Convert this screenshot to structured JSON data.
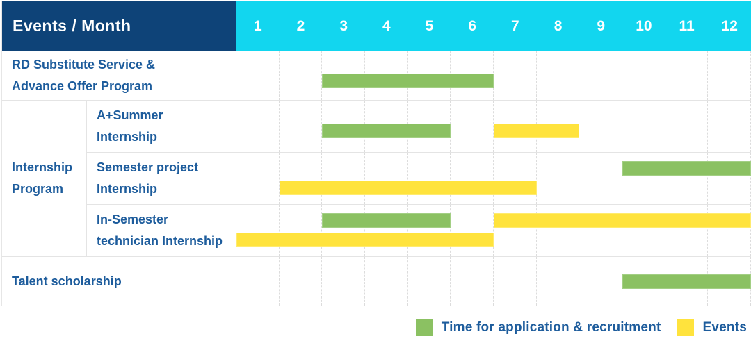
{
  "header": {
    "corner_label": "Events / Month",
    "months": [
      "1",
      "2",
      "3",
      "4",
      "5",
      "6",
      "7",
      "8",
      "9",
      "10",
      "11",
      "12"
    ]
  },
  "legend": {
    "items": [
      {
        "type": "application",
        "label": "Time for application & recruitment"
      },
      {
        "type": "event",
        "label": "Events"
      }
    ]
  },
  "colors": {
    "header_navy": "#0e4378",
    "header_cyan": "#12d6ef",
    "application_green": "#8bc162",
    "event_yellow": "#ffe33d",
    "label_blue": "#1d5c9c",
    "grid_gray": "#e4e4e4"
  },
  "chart_data": {
    "type": "gantt",
    "title": "Events / Month",
    "x_unit": "month",
    "x_range": [
      1,
      12
    ],
    "legend_position": "bottom-right",
    "series_types": {
      "application": "Time for application & recruitment",
      "event": "Events"
    },
    "rows": [
      {
        "group": "",
        "label": "RD Substitute Service &\nAdvance Offer Program",
        "bars": [
          {
            "type": "application",
            "start_month": 3,
            "end_month": 6,
            "track": "mid"
          }
        ]
      },
      {
        "group": "Internship\nProgram",
        "label": "A+Summer\nInternship",
        "bars": [
          {
            "type": "application",
            "start_month": 3,
            "end_month": 5,
            "track": "mid"
          },
          {
            "type": "event",
            "start_month": 7,
            "end_month": 8,
            "track": "mid"
          }
        ]
      },
      {
        "group": "Internship\nProgram",
        "label": "Semester project\nInternship",
        "bars": [
          {
            "type": "application",
            "start_month": 10,
            "end_month": 12,
            "track": "upper"
          },
          {
            "type": "event",
            "start_month": 2,
            "end_month": 7,
            "track": "lower"
          }
        ]
      },
      {
        "group": "Internship\nProgram",
        "label": "In-Semester\ntechnician Internship",
        "bars": [
          {
            "type": "application",
            "start_month": 3,
            "end_month": 5,
            "track": "upper"
          },
          {
            "type": "event",
            "start_month": 7,
            "end_month": 12,
            "track": "upper"
          },
          {
            "type": "event",
            "start_month": 1,
            "end_month": 6,
            "track": "lower"
          }
        ]
      },
      {
        "group": "",
        "label": "Talent scholarship",
        "bars": [
          {
            "type": "application",
            "start_month": 10,
            "end_month": 12,
            "track": "center"
          }
        ]
      }
    ]
  }
}
